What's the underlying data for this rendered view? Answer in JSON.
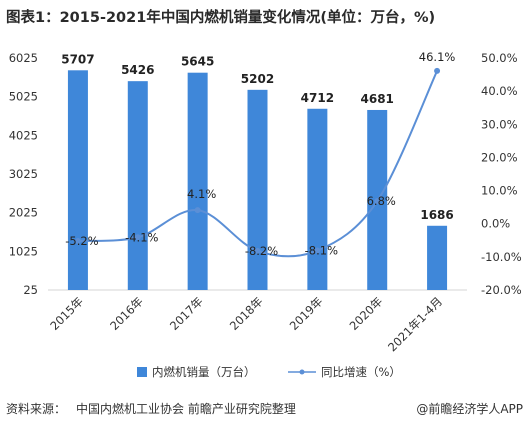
{
  "title": "图表1：2015-2021年中国内燃机销量变化情况(单位：万台，%)",
  "chart_data": {
    "type": "bar",
    "categories": [
      "2015年",
      "2016年",
      "2017年",
      "2018年",
      "2019年",
      "2020年",
      "2021年1-4月"
    ],
    "series": [
      {
        "name": "内燃机销量（万台）",
        "type": "bar",
        "axis": "left",
        "color": "#3f87d9",
        "values": [
          5707,
          5426,
          5645,
          5202,
          4712,
          4681,
          1686
        ],
        "labels": [
          "5707",
          "5426",
          "5645",
          "5202",
          "4712",
          "4681",
          "1686"
        ]
      },
      {
        "name": "同比增速（%）",
        "type": "line",
        "axis": "right",
        "color": "#5b8fd6",
        "values": [
          -5.2,
          -4.1,
          4.1,
          -8.2,
          -8.1,
          6.8,
          46.1
        ],
        "labels": [
          "-5.2%",
          "-4.1%",
          "4.1%",
          "-8.2%",
          "-8.1%",
          "6.8%",
          "46.1%"
        ]
      }
    ],
    "ylim_left": [
      25,
      6025
    ],
    "yticks_left": [
      "6025",
      "5025",
      "4025",
      "3025",
      "2025",
      "1025",
      "25"
    ],
    "yticks_left_values": [
      6025,
      5025,
      4025,
      3025,
      2025,
      1025,
      25
    ],
    "ylim_right": [
      -20,
      50
    ],
    "yticks_right": [
      "50.0%",
      "40.0%",
      "30.0%",
      "20.0%",
      "10.0%",
      "0.0%",
      "-10.0%",
      "-20.0%"
    ],
    "yticks_right_values": [
      50,
      40,
      30,
      20,
      10,
      0,
      -10,
      -20
    ],
    "legend_position": "bottom"
  },
  "footer": {
    "source_label": "资料来源：",
    "source_text": "中国内燃机工业协会 前瞻产业研究院整理",
    "credit": "@前瞻经济学人APP"
  }
}
